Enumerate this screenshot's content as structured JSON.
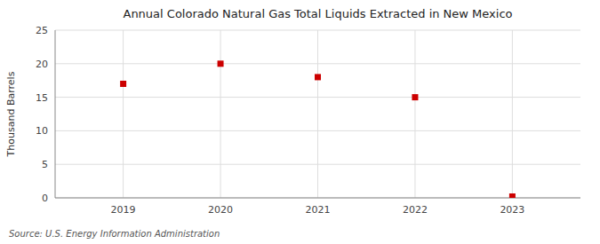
{
  "chart_data": {
    "type": "scatter",
    "title": "Annual Colorado Natural Gas Total Liquids Extracted in New Mexico",
    "ylabel": "Thousand Barrels",
    "annotation": "Source: U.S. Energy Information Administration",
    "x": [
      2019,
      2020,
      2021,
      2022,
      2023
    ],
    "values": [
      17,
      20,
      18,
      15,
      0.2
    ],
    "xlim": [
      2018.3,
      2023.7
    ],
    "ylim": [
      0,
      25
    ],
    "xticks": [
      2019,
      2020,
      2021,
      2022,
      2023
    ],
    "yticks": [
      0,
      5,
      10,
      15,
      20,
      25
    ],
    "color": "#cc0000",
    "marker": "square",
    "grid": true
  }
}
